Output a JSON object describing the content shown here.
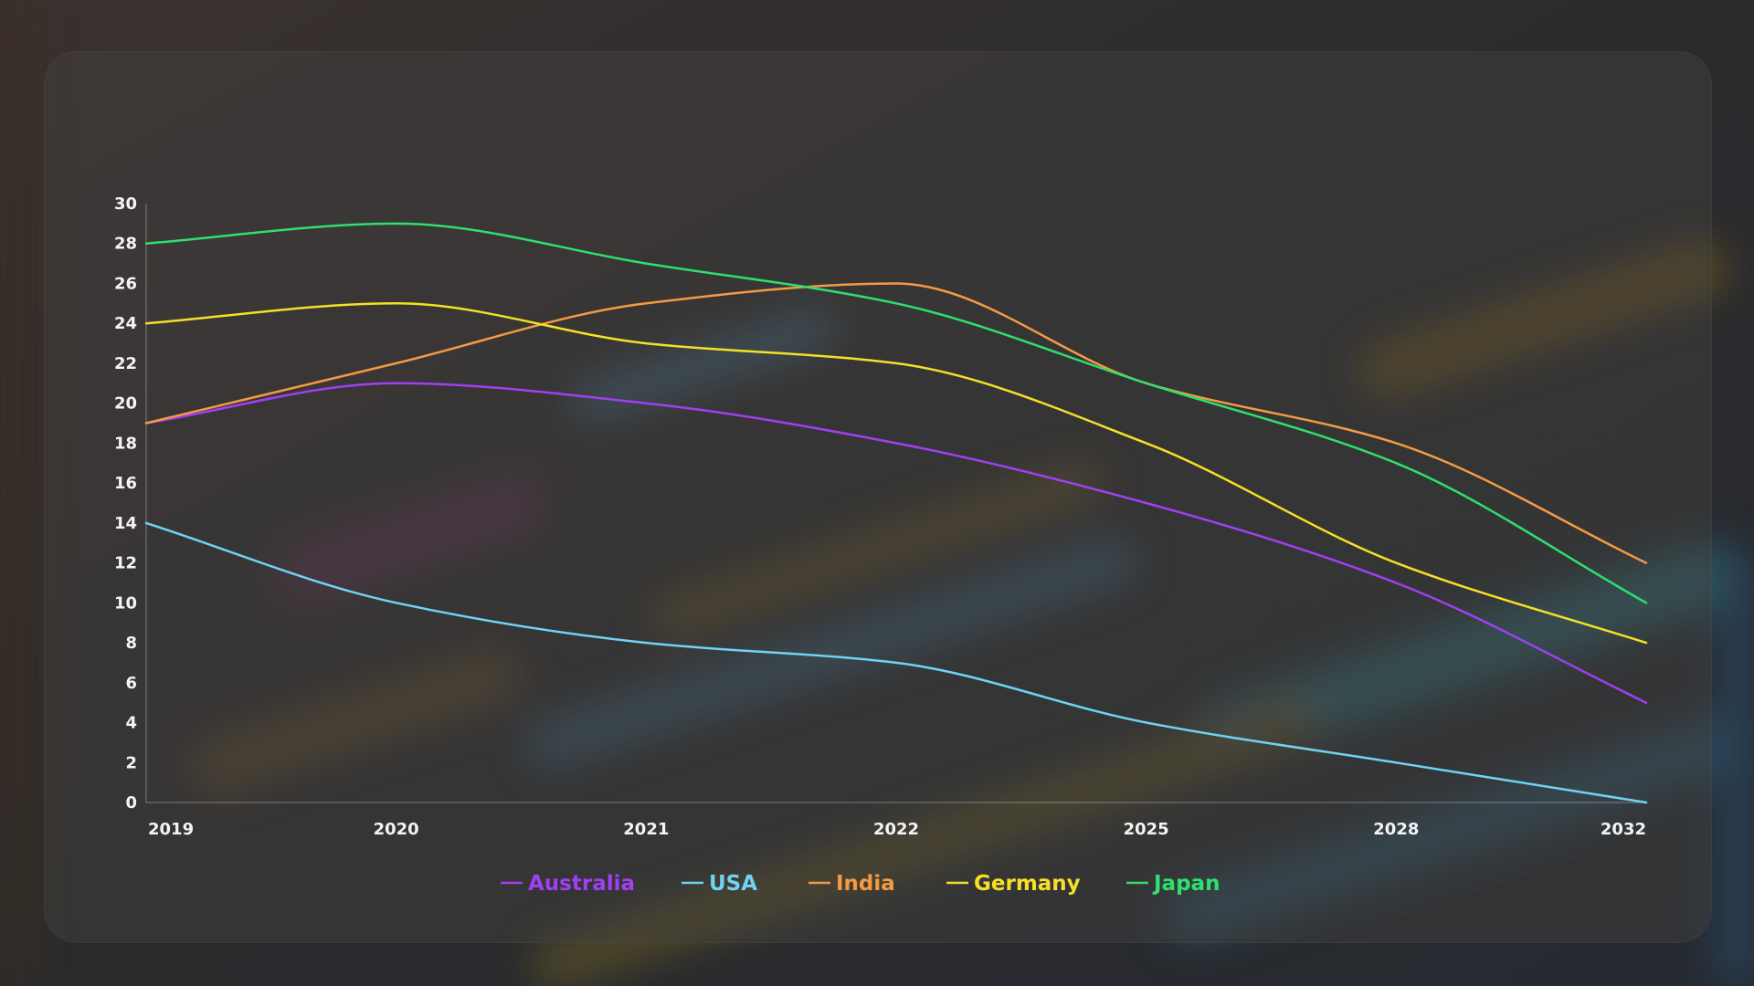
{
  "chart_data": {
    "type": "line",
    "smooth": true,
    "title": "",
    "xlabel": "",
    "ylabel": "",
    "categories": [
      "2019",
      "2020",
      "2021",
      "2022",
      "2025",
      "2028",
      "2032"
    ],
    "ylim": [
      0,
      30
    ],
    "yticks": [
      0,
      2,
      4,
      6,
      8,
      10,
      12,
      14,
      16,
      18,
      20,
      22,
      24,
      26,
      28,
      30
    ],
    "grid": false,
    "legend_position": "bottom-center",
    "series": [
      {
        "name": "Australia",
        "color": "#a13ff2",
        "values": [
          19,
          21,
          20,
          18,
          15,
          11,
          5
        ]
      },
      {
        "name": "USA",
        "color": "#6fd3f5",
        "values": [
          14,
          10,
          8,
          7,
          4,
          2,
          0
        ]
      },
      {
        "name": "India",
        "color": "#f49a42",
        "values": [
          19,
          22,
          25,
          26,
          21,
          18,
          12
        ]
      },
      {
        "name": "Germany",
        "color": "#f4e026",
        "values": [
          24,
          25,
          23,
          22,
          18,
          12,
          8
        ]
      },
      {
        "name": "Japan",
        "color": "#2ee06e",
        "values": [
          28,
          29,
          27,
          25,
          21,
          17,
          10
        ]
      }
    ]
  }
}
